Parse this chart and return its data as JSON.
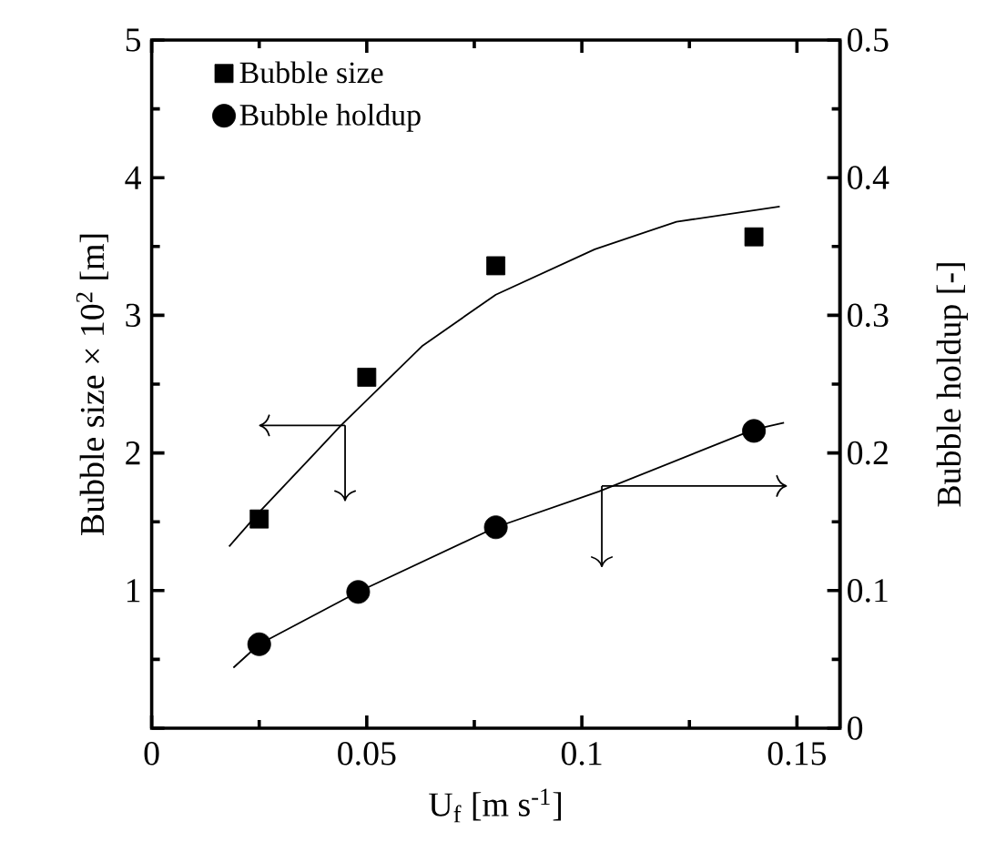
{
  "chart_data": {
    "type": "scatter",
    "xlabel": "U$_{f}$ [m s$^{-1}$]",
    "ylabel": "Bubble size × 10$^{2}$ [m]",
    "y2label": "Bubble holdup  [-]",
    "xlim": [
      0,
      0.16
    ],
    "xticks": [
      0,
      0.05,
      0.1,
      0.15
    ],
    "ylim": [
      0,
      5
    ],
    "yticks": [
      {
        "value": 0,
        "label": null
      },
      1,
      2,
      3,
      4,
      5
    ],
    "y2lim": [
      0,
      0.5
    ],
    "y2ticks": [
      0,
      0.1,
      0.2,
      0.3,
      0.4,
      0.5
    ],
    "legend": "top left",
    "series": [
      {
        "name": "Bubble size",
        "color": "#000000",
        "marker": "square",
        "x": [
          0.025,
          0.05,
          0.08,
          0.14
        ],
        "values": [
          1.52,
          2.55,
          3.36,
          3.57
        ]
      },
      {
        "name": "Bubble holdup",
        "color": "#000000",
        "marker": "circle",
        "axis": "y2",
        "x": [
          0.025,
          0.048,
          0.08,
          0.14
        ],
        "values": [
          0.061,
          0.099,
          0.146,
          0.216
        ]
      },
      {
        "type": "line",
        "color": "#000000",
        "x": [
          0.018,
          0.025,
          0.035,
          0.044,
          0.063,
          0.08,
          0.103,
          0.122,
          0.146
        ],
        "values": [
          1.32,
          1.57,
          1.9,
          2.2,
          2.78,
          3.15,
          3.48,
          3.68,
          3.79
        ]
      },
      {
        "type": "line",
        "color": "#000000",
        "axis": "y2",
        "x": [
          0.019,
          0.025,
          0.048,
          0.08,
          0.104,
          0.14,
          0.147
        ],
        "values": [
          0.044,
          0.061,
          0.099,
          0.146,
          0.172,
          0.217,
          0.222
        ]
      }
    ]
  }
}
